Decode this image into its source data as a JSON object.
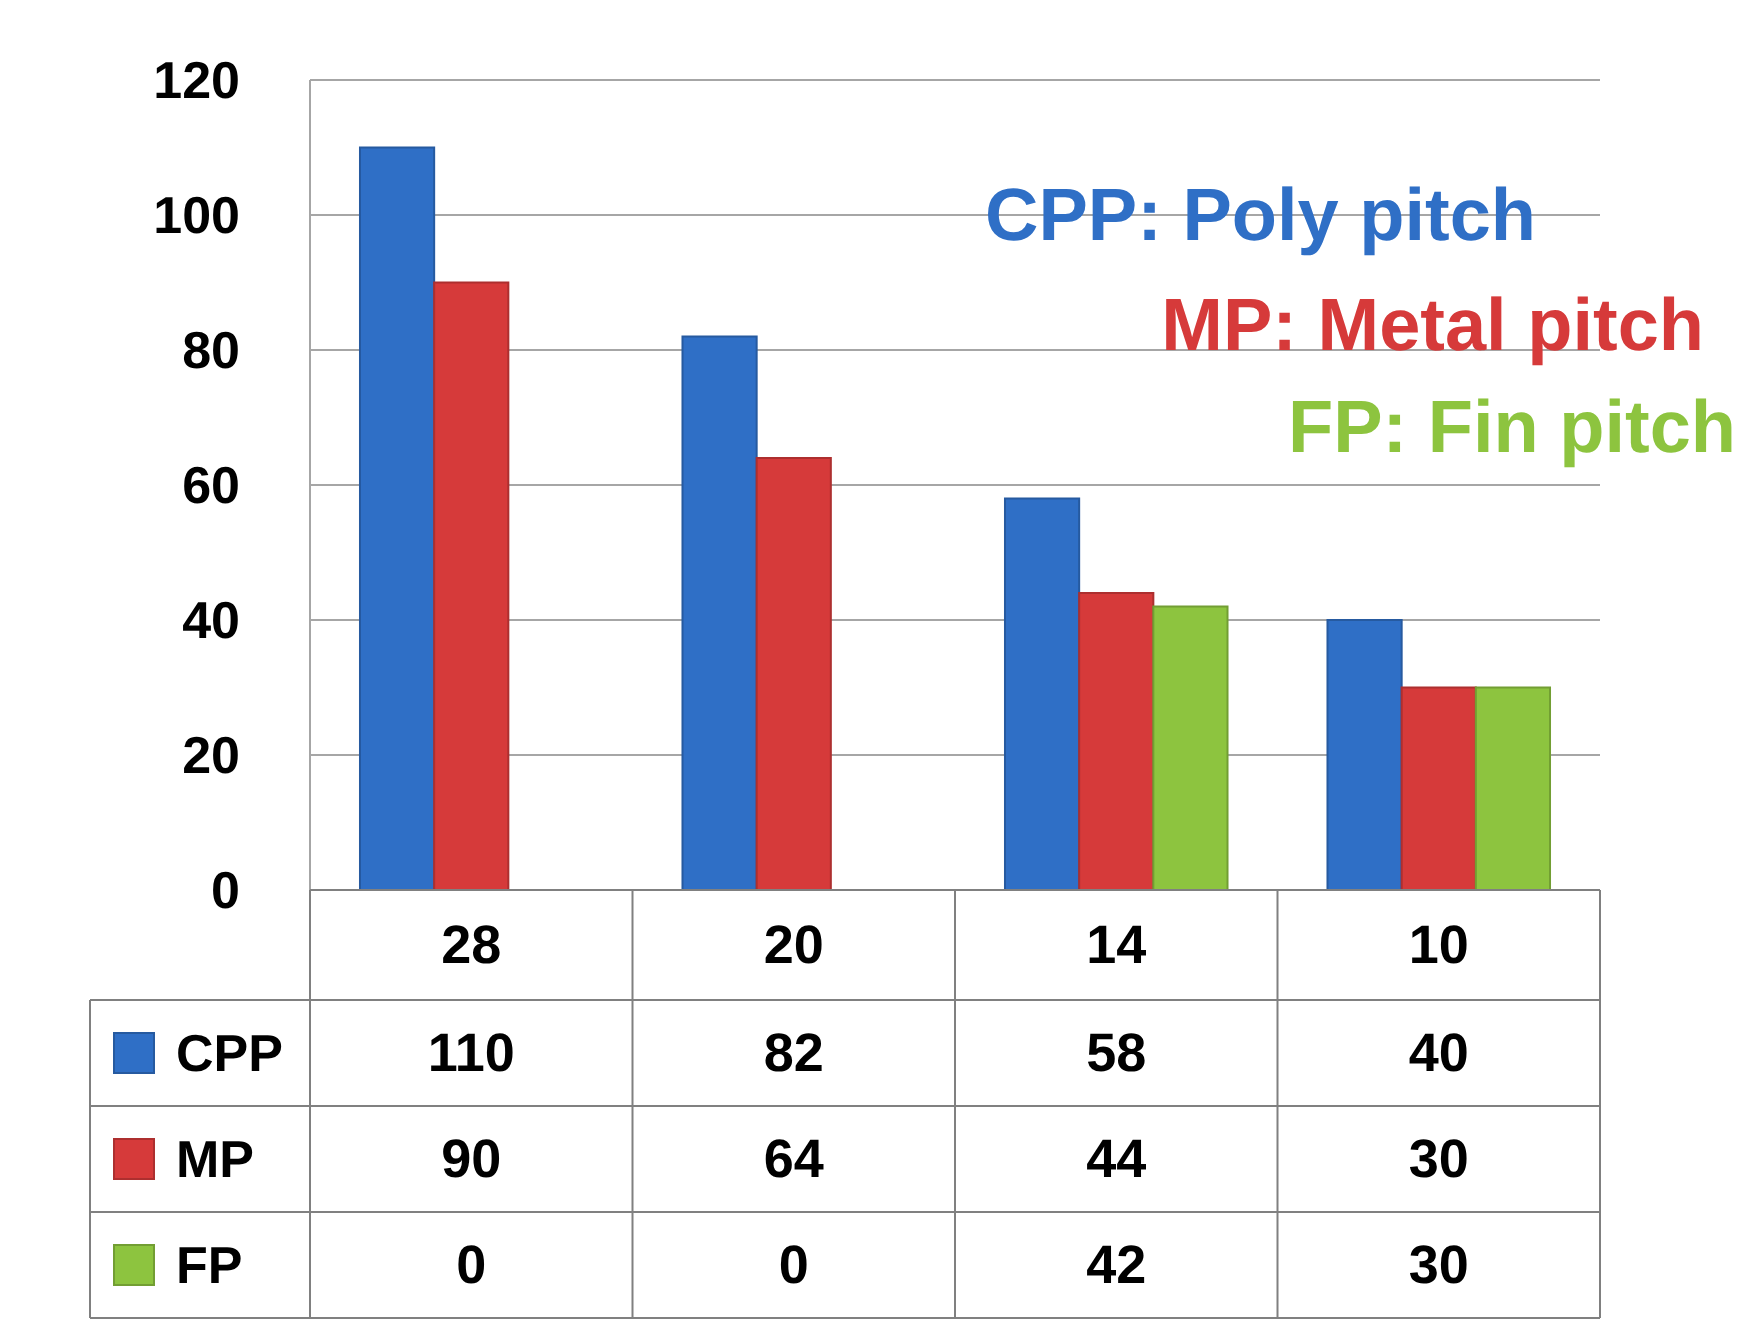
{
  "chart_data": {
    "type": "bar",
    "categories": [
      "28",
      "20",
      "14",
      "10"
    ],
    "series": [
      {
        "name": "CPP",
        "color": "#2f6fc6",
        "values": [
          110,
          82,
          58,
          40
        ]
      },
      {
        "name": "MP",
        "color": "#d63a3a",
        "values": [
          90,
          64,
          44,
          30
        ]
      },
      {
        "name": "FP",
        "color": "#8dc43f",
        "values": [
          0,
          0,
          42,
          30
        ]
      }
    ],
    "ylim": [
      0,
      120
    ],
    "yticks": [
      0,
      20,
      40,
      60,
      80,
      100,
      120
    ],
    "grid": "y",
    "legend": "bottom",
    "data_labels": true,
    "annotations": [
      "CPP: Poly pitch",
      "MP: Metal pitch",
      "FP: Fin pitch"
    ]
  }
}
